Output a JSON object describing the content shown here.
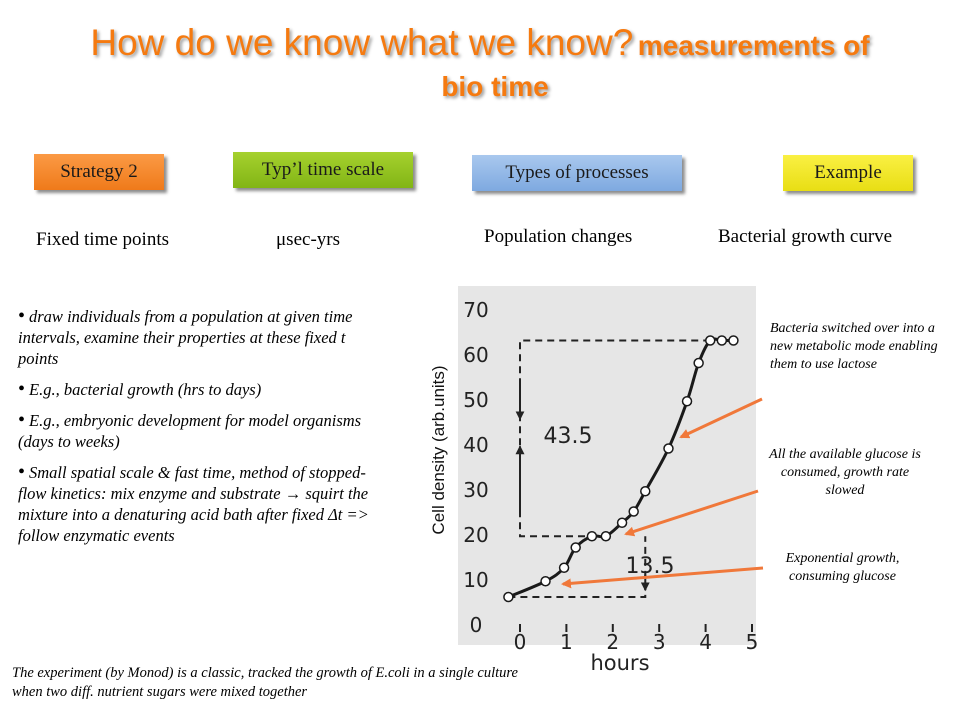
{
  "title": {
    "main": "How do we know what we know?",
    "sub_part1": "measurements of",
    "sub_part2": "bio time"
  },
  "headers": {
    "strategy": "Strategy 2",
    "time_scale": "Typ’l time scale",
    "processes": "Types of processes",
    "example": "Example"
  },
  "values": {
    "strategy": "Fixed time points",
    "time_scale": "μsec-yrs",
    "processes": "Population changes",
    "example": "Bacterial growth curve"
  },
  "bullets": [
    "draw individuals from a population at given time intervals, examine their properties at these fixed t points",
    "E.g., bacterial growth (hrs to days)",
    "E.g., embryonic development for model organisms (days to weeks)",
    "Small spatial scale & fast time, method of stopped-flow kinetics: mix enzyme and substrate → squirt the mixture into a denaturing acid bath after fixed Δt => follow enzymatic events"
  ],
  "footnote": "The experiment (by Monod) is a classic, tracked the growth of E.coli in a single culture when two diff. nutrient sugars were mixed together",
  "annotations": {
    "lactose": "Bacteria switched over into a new metabolic mode enabling them to use lactose",
    "glucose_consumed": "All the available glucose is consumed, growth rate slowed",
    "exponential": "Exponential growth, consuming glucose"
  },
  "colors": {
    "title": "#f57a10",
    "arrow": "#f0783a",
    "plot_bg": "#e6e6e6"
  },
  "chart_data": {
    "type": "line",
    "xlabel": "hours",
    "ylabel": "Cell density (arb.units)",
    "xticks": [
      "0",
      "1",
      "2",
      "3",
      "4",
      "5"
    ],
    "yticks": [
      "0",
      "10",
      "20",
      "30",
      "40",
      "50",
      "60",
      "70"
    ],
    "xlim": [
      -0.45,
      5.0
    ],
    "ylim": [
      0,
      73
    ],
    "series": [
      {
        "x": [
          -0.25,
          0.55,
          0.95,
          1.2,
          1.55,
          1.85,
          2.2,
          2.45,
          2.7,
          3.2,
          3.6,
          3.85,
          4.1,
          4.35,
          4.6
        ],
        "values": [
          6,
          9.5,
          12.5,
          17,
          19.5,
          19.5,
          22.5,
          25,
          29.5,
          39,
          49.5,
          58,
          63,
          63,
          63
        ]
      }
    ],
    "annotations": [
      {
        "label": "43.5"
      },
      {
        "label": "13.5"
      }
    ]
  }
}
